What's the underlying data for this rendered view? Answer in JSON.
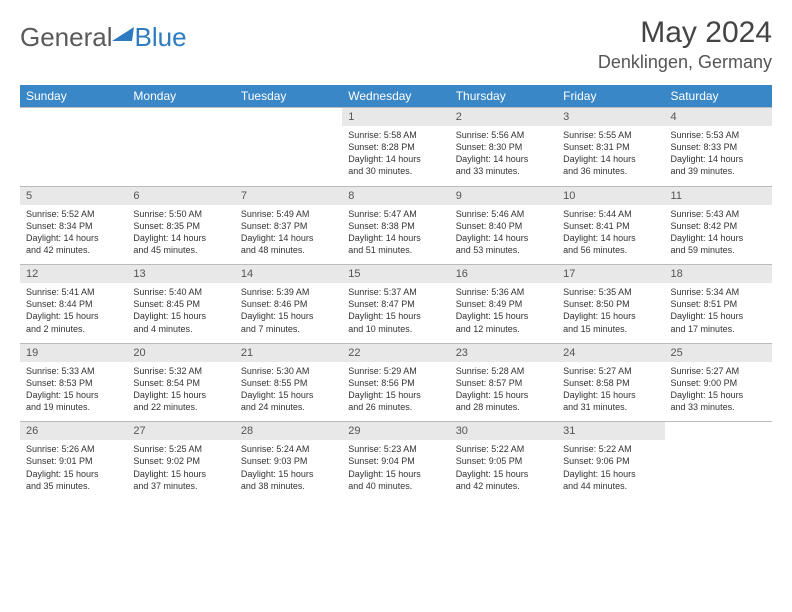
{
  "brand": {
    "word1": "General",
    "word2": "Blue"
  },
  "title": "May 2024",
  "location": "Denklingen, Germany",
  "colors": {
    "headerBg": "#3a87c8",
    "dayBg": "#e8e8e8",
    "border": "#bbb"
  },
  "weekdays": [
    "Sunday",
    "Monday",
    "Tuesday",
    "Wednesday",
    "Thursday",
    "Friday",
    "Saturday"
  ],
  "weeks": [
    {
      "nums": [
        "",
        "",
        "",
        "1",
        "2",
        "3",
        "4"
      ],
      "cells": [
        null,
        null,
        null,
        {
          "sr": "Sunrise: 5:58 AM",
          "ss": "Sunset: 8:28 PM",
          "dl1": "Daylight: 14 hours",
          "dl2": "and 30 minutes."
        },
        {
          "sr": "Sunrise: 5:56 AM",
          "ss": "Sunset: 8:30 PM",
          "dl1": "Daylight: 14 hours",
          "dl2": "and 33 minutes."
        },
        {
          "sr": "Sunrise: 5:55 AM",
          "ss": "Sunset: 8:31 PM",
          "dl1": "Daylight: 14 hours",
          "dl2": "and 36 minutes."
        },
        {
          "sr": "Sunrise: 5:53 AM",
          "ss": "Sunset: 8:33 PM",
          "dl1": "Daylight: 14 hours",
          "dl2": "and 39 minutes."
        }
      ]
    },
    {
      "nums": [
        "5",
        "6",
        "7",
        "8",
        "9",
        "10",
        "11"
      ],
      "cells": [
        {
          "sr": "Sunrise: 5:52 AM",
          "ss": "Sunset: 8:34 PM",
          "dl1": "Daylight: 14 hours",
          "dl2": "and 42 minutes."
        },
        {
          "sr": "Sunrise: 5:50 AM",
          "ss": "Sunset: 8:35 PM",
          "dl1": "Daylight: 14 hours",
          "dl2": "and 45 minutes."
        },
        {
          "sr": "Sunrise: 5:49 AM",
          "ss": "Sunset: 8:37 PM",
          "dl1": "Daylight: 14 hours",
          "dl2": "and 48 minutes."
        },
        {
          "sr": "Sunrise: 5:47 AM",
          "ss": "Sunset: 8:38 PM",
          "dl1": "Daylight: 14 hours",
          "dl2": "and 51 minutes."
        },
        {
          "sr": "Sunrise: 5:46 AM",
          "ss": "Sunset: 8:40 PM",
          "dl1": "Daylight: 14 hours",
          "dl2": "and 53 minutes."
        },
        {
          "sr": "Sunrise: 5:44 AM",
          "ss": "Sunset: 8:41 PM",
          "dl1": "Daylight: 14 hours",
          "dl2": "and 56 minutes."
        },
        {
          "sr": "Sunrise: 5:43 AM",
          "ss": "Sunset: 8:42 PM",
          "dl1": "Daylight: 14 hours",
          "dl2": "and 59 minutes."
        }
      ]
    },
    {
      "nums": [
        "12",
        "13",
        "14",
        "15",
        "16",
        "17",
        "18"
      ],
      "cells": [
        {
          "sr": "Sunrise: 5:41 AM",
          "ss": "Sunset: 8:44 PM",
          "dl1": "Daylight: 15 hours",
          "dl2": "and 2 minutes."
        },
        {
          "sr": "Sunrise: 5:40 AM",
          "ss": "Sunset: 8:45 PM",
          "dl1": "Daylight: 15 hours",
          "dl2": "and 4 minutes."
        },
        {
          "sr": "Sunrise: 5:39 AM",
          "ss": "Sunset: 8:46 PM",
          "dl1": "Daylight: 15 hours",
          "dl2": "and 7 minutes."
        },
        {
          "sr": "Sunrise: 5:37 AM",
          "ss": "Sunset: 8:47 PM",
          "dl1": "Daylight: 15 hours",
          "dl2": "and 10 minutes."
        },
        {
          "sr": "Sunrise: 5:36 AM",
          "ss": "Sunset: 8:49 PM",
          "dl1": "Daylight: 15 hours",
          "dl2": "and 12 minutes."
        },
        {
          "sr": "Sunrise: 5:35 AM",
          "ss": "Sunset: 8:50 PM",
          "dl1": "Daylight: 15 hours",
          "dl2": "and 15 minutes."
        },
        {
          "sr": "Sunrise: 5:34 AM",
          "ss": "Sunset: 8:51 PM",
          "dl1": "Daylight: 15 hours",
          "dl2": "and 17 minutes."
        }
      ]
    },
    {
      "nums": [
        "19",
        "20",
        "21",
        "22",
        "23",
        "24",
        "25"
      ],
      "cells": [
        {
          "sr": "Sunrise: 5:33 AM",
          "ss": "Sunset: 8:53 PM",
          "dl1": "Daylight: 15 hours",
          "dl2": "and 19 minutes."
        },
        {
          "sr": "Sunrise: 5:32 AM",
          "ss": "Sunset: 8:54 PM",
          "dl1": "Daylight: 15 hours",
          "dl2": "and 22 minutes."
        },
        {
          "sr": "Sunrise: 5:30 AM",
          "ss": "Sunset: 8:55 PM",
          "dl1": "Daylight: 15 hours",
          "dl2": "and 24 minutes."
        },
        {
          "sr": "Sunrise: 5:29 AM",
          "ss": "Sunset: 8:56 PM",
          "dl1": "Daylight: 15 hours",
          "dl2": "and 26 minutes."
        },
        {
          "sr": "Sunrise: 5:28 AM",
          "ss": "Sunset: 8:57 PM",
          "dl1": "Daylight: 15 hours",
          "dl2": "and 28 minutes."
        },
        {
          "sr": "Sunrise: 5:27 AM",
          "ss": "Sunset: 8:58 PM",
          "dl1": "Daylight: 15 hours",
          "dl2": "and 31 minutes."
        },
        {
          "sr": "Sunrise: 5:27 AM",
          "ss": "Sunset: 9:00 PM",
          "dl1": "Daylight: 15 hours",
          "dl2": "and 33 minutes."
        }
      ]
    },
    {
      "nums": [
        "26",
        "27",
        "28",
        "29",
        "30",
        "31",
        ""
      ],
      "cells": [
        {
          "sr": "Sunrise: 5:26 AM",
          "ss": "Sunset: 9:01 PM",
          "dl1": "Daylight: 15 hours",
          "dl2": "and 35 minutes."
        },
        {
          "sr": "Sunrise: 5:25 AM",
          "ss": "Sunset: 9:02 PM",
          "dl1": "Daylight: 15 hours",
          "dl2": "and 37 minutes."
        },
        {
          "sr": "Sunrise: 5:24 AM",
          "ss": "Sunset: 9:03 PM",
          "dl1": "Daylight: 15 hours",
          "dl2": "and 38 minutes."
        },
        {
          "sr": "Sunrise: 5:23 AM",
          "ss": "Sunset: 9:04 PM",
          "dl1": "Daylight: 15 hours",
          "dl2": "and 40 minutes."
        },
        {
          "sr": "Sunrise: 5:22 AM",
          "ss": "Sunset: 9:05 PM",
          "dl1": "Daylight: 15 hours",
          "dl2": "and 42 minutes."
        },
        {
          "sr": "Sunrise: 5:22 AM",
          "ss": "Sunset: 9:06 PM",
          "dl1": "Daylight: 15 hours",
          "dl2": "and 44 minutes."
        },
        null
      ]
    }
  ]
}
